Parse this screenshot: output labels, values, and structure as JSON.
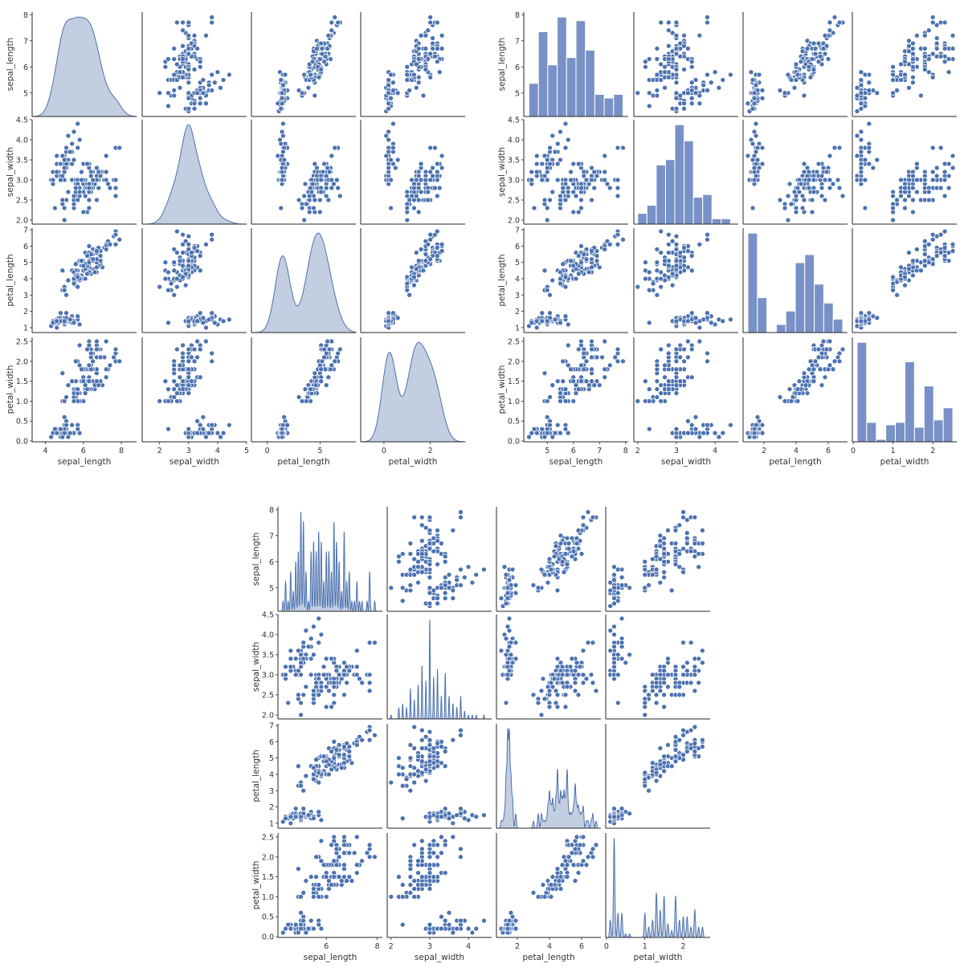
{
  "palette": {
    "marker": "#4c72b0",
    "marker_edge": "#ffffff",
    "kde_fill": "#b8c5dc",
    "hist_fill": "#7891c6",
    "hist_edge": "#ffffff"
  },
  "dataset": {
    "columns": [
      "sepal_length",
      "sepal_width",
      "petal_length",
      "petal_width"
    ],
    "rows": [
      [
        5.1,
        3.5,
        1.4,
        0.2
      ],
      [
        4.9,
        3.0,
        1.4,
        0.2
      ],
      [
        4.7,
        3.2,
        1.3,
        0.2
      ],
      [
        4.6,
        3.1,
        1.5,
        0.2
      ],
      [
        5.0,
        3.6,
        1.4,
        0.2
      ],
      [
        5.4,
        3.9,
        1.7,
        0.4
      ],
      [
        4.6,
        3.4,
        1.4,
        0.3
      ],
      [
        5.0,
        3.4,
        1.5,
        0.2
      ],
      [
        4.4,
        2.9,
        1.4,
        0.2
      ],
      [
        4.9,
        3.1,
        1.5,
        0.1
      ],
      [
        5.4,
        3.7,
        1.5,
        0.2
      ],
      [
        4.8,
        3.4,
        1.6,
        0.2
      ],
      [
        4.8,
        3.0,
        1.4,
        0.1
      ],
      [
        4.3,
        3.0,
        1.1,
        0.1
      ],
      [
        5.8,
        4.0,
        1.2,
        0.2
      ],
      [
        5.7,
        4.4,
        1.5,
        0.4
      ],
      [
        5.4,
        3.9,
        1.3,
        0.4
      ],
      [
        5.1,
        3.5,
        1.4,
        0.3
      ],
      [
        5.7,
        3.8,
        1.7,
        0.3
      ],
      [
        5.1,
        3.8,
        1.5,
        0.3
      ],
      [
        5.4,
        3.4,
        1.7,
        0.2
      ],
      [
        5.1,
        3.7,
        1.5,
        0.4
      ],
      [
        4.6,
        3.6,
        1.0,
        0.2
      ],
      [
        5.1,
        3.3,
        1.7,
        0.5
      ],
      [
        4.8,
        3.4,
        1.9,
        0.2
      ],
      [
        5.0,
        3.0,
        1.6,
        0.2
      ],
      [
        5.0,
        3.4,
        1.6,
        0.4
      ],
      [
        5.2,
        3.5,
        1.5,
        0.2
      ],
      [
        5.2,
        3.4,
        1.4,
        0.2
      ],
      [
        4.7,
        3.2,
        1.6,
        0.2
      ],
      [
        4.8,
        3.1,
        1.6,
        0.2
      ],
      [
        5.4,
        3.4,
        1.5,
        0.4
      ],
      [
        5.2,
        4.1,
        1.5,
        0.1
      ],
      [
        5.5,
        4.2,
        1.4,
        0.2
      ],
      [
        4.9,
        3.1,
        1.5,
        0.2
      ],
      [
        5.0,
        3.2,
        1.2,
        0.2
      ],
      [
        5.5,
        3.5,
        1.3,
        0.2
      ],
      [
        4.9,
        3.6,
        1.4,
        0.1
      ],
      [
        4.4,
        3.0,
        1.3,
        0.2
      ],
      [
        5.1,
        3.4,
        1.5,
        0.2
      ],
      [
        5.0,
        3.5,
        1.3,
        0.3
      ],
      [
        4.5,
        2.3,
        1.3,
        0.3
      ],
      [
        4.4,
        3.2,
        1.3,
        0.2
      ],
      [
        5.0,
        3.5,
        1.6,
        0.6
      ],
      [
        5.1,
        3.8,
        1.9,
        0.4
      ],
      [
        4.8,
        3.0,
        1.4,
        0.3
      ],
      [
        5.1,
        3.8,
        1.6,
        0.2
      ],
      [
        4.6,
        3.2,
        1.4,
        0.2
      ],
      [
        5.3,
        3.7,
        1.5,
        0.2
      ],
      [
        5.0,
        3.3,
        1.4,
        0.2
      ],
      [
        7.0,
        3.2,
        4.7,
        1.4
      ],
      [
        6.4,
        3.2,
        4.5,
        1.5
      ],
      [
        6.9,
        3.1,
        4.9,
        1.5
      ],
      [
        5.5,
        2.3,
        4.0,
        1.3
      ],
      [
        6.5,
        2.8,
        4.6,
        1.5
      ],
      [
        5.7,
        2.8,
        4.5,
        1.3
      ],
      [
        6.3,
        3.3,
        4.7,
        1.6
      ],
      [
        4.9,
        2.4,
        3.3,
        1.0
      ],
      [
        6.6,
        2.9,
        4.6,
        1.3
      ],
      [
        5.2,
        2.7,
        3.9,
        1.4
      ],
      [
        5.0,
        2.0,
        3.5,
        1.0
      ],
      [
        5.9,
        3.0,
        4.2,
        1.5
      ],
      [
        6.0,
        2.2,
        4.0,
        1.0
      ],
      [
        6.1,
        2.9,
        4.7,
        1.4
      ],
      [
        5.6,
        2.9,
        3.6,
        1.3
      ],
      [
        6.7,
        3.1,
        4.4,
        1.4
      ],
      [
        5.6,
        3.0,
        4.5,
        1.5
      ],
      [
        5.8,
        2.7,
        4.1,
        1.0
      ],
      [
        6.2,
        2.2,
        4.5,
        1.5
      ],
      [
        5.6,
        2.5,
        3.9,
        1.1
      ],
      [
        5.9,
        3.2,
        4.8,
        1.8
      ],
      [
        6.1,
        2.8,
        4.0,
        1.3
      ],
      [
        6.3,
        2.5,
        4.9,
        1.5
      ],
      [
        6.1,
        2.8,
        4.7,
        1.2
      ],
      [
        6.4,
        2.9,
        4.3,
        1.3
      ],
      [
        6.6,
        3.0,
        4.4,
        1.4
      ],
      [
        6.8,
        2.8,
        4.8,
        1.4
      ],
      [
        6.7,
        3.0,
        5.0,
        1.7
      ],
      [
        6.0,
        2.9,
        4.5,
        1.5
      ],
      [
        5.7,
        2.6,
        3.5,
        1.0
      ],
      [
        5.5,
        2.4,
        3.8,
        1.1
      ],
      [
        5.5,
        2.4,
        3.7,
        1.0
      ],
      [
        5.8,
        2.7,
        3.9,
        1.2
      ],
      [
        6.0,
        2.7,
        5.1,
        1.6
      ],
      [
        5.4,
        3.0,
        4.5,
        1.5
      ],
      [
        6.0,
        3.4,
        4.5,
        1.6
      ],
      [
        6.7,
        3.1,
        4.7,
        1.5
      ],
      [
        6.3,
        2.3,
        4.4,
        1.3
      ],
      [
        5.6,
        3.0,
        4.1,
        1.3
      ],
      [
        5.5,
        2.5,
        4.0,
        1.3
      ],
      [
        5.5,
        2.6,
        4.4,
        1.2
      ],
      [
        6.1,
        3.0,
        4.6,
        1.4
      ],
      [
        5.8,
        2.6,
        4.0,
        1.2
      ],
      [
        5.0,
        2.3,
        3.3,
        1.0
      ],
      [
        5.6,
        2.7,
        4.2,
        1.3
      ],
      [
        5.7,
        3.0,
        4.2,
        1.2
      ],
      [
        5.7,
        2.9,
        4.2,
        1.3
      ],
      [
        6.2,
        2.9,
        4.3,
        1.3
      ],
      [
        5.1,
        2.5,
        3.0,
        1.1
      ],
      [
        5.7,
        2.8,
        4.1,
        1.3
      ],
      [
        6.3,
        3.3,
        6.0,
        2.5
      ],
      [
        5.8,
        2.7,
        5.1,
        1.9
      ],
      [
        7.1,
        3.0,
        5.9,
        2.1
      ],
      [
        6.3,
        2.9,
        5.6,
        1.8
      ],
      [
        6.5,
        3.0,
        5.8,
        2.2
      ],
      [
        7.6,
        3.0,
        6.6,
        2.1
      ],
      [
        4.9,
        2.5,
        4.5,
        1.7
      ],
      [
        7.3,
        2.9,
        6.3,
        1.8
      ],
      [
        6.7,
        2.5,
        5.8,
        1.8
      ],
      [
        7.2,
        3.6,
        6.1,
        2.5
      ],
      [
        6.5,
        3.2,
        5.1,
        2.0
      ],
      [
        6.4,
        2.7,
        5.3,
        1.9
      ],
      [
        6.8,
        3.0,
        5.5,
        2.1
      ],
      [
        5.7,
        2.5,
        5.0,
        2.0
      ],
      [
        5.8,
        2.8,
        5.1,
        2.4
      ],
      [
        6.4,
        3.2,
        5.3,
        2.3
      ],
      [
        6.5,
        3.0,
        5.5,
        1.8
      ],
      [
        7.7,
        3.8,
        6.7,
        2.2
      ],
      [
        7.7,
        2.6,
        6.9,
        2.3
      ],
      [
        6.0,
        2.2,
        5.0,
        1.5
      ],
      [
        6.9,
        3.2,
        5.7,
        2.3
      ],
      [
        5.6,
        2.8,
        4.9,
        2.0
      ],
      [
        7.7,
        2.8,
        6.7,
        2.0
      ],
      [
        6.3,
        2.7,
        4.9,
        1.8
      ],
      [
        6.7,
        3.3,
        5.7,
        2.1
      ],
      [
        7.2,
        3.2,
        6.0,
        1.8
      ],
      [
        6.2,
        2.8,
        4.8,
        1.8
      ],
      [
        6.1,
        3.0,
        4.9,
        1.8
      ],
      [
        6.4,
        2.8,
        5.6,
        2.1
      ],
      [
        7.2,
        3.0,
        5.8,
        1.6
      ],
      [
        7.4,
        2.8,
        6.1,
        1.9
      ],
      [
        7.9,
        3.8,
        6.4,
        2.0
      ],
      [
        6.4,
        2.8,
        5.6,
        2.2
      ],
      [
        6.3,
        2.8,
        5.1,
        1.5
      ],
      [
        6.1,
        2.6,
        5.6,
        1.4
      ],
      [
        7.7,
        3.0,
        6.1,
        2.3
      ],
      [
        6.3,
        3.4,
        5.6,
        2.4
      ],
      [
        6.4,
        3.1,
        5.5,
        1.8
      ],
      [
        6.0,
        3.0,
        4.8,
        1.8
      ],
      [
        6.9,
        3.1,
        5.4,
        2.1
      ],
      [
        6.7,
        3.1,
        5.6,
        2.4
      ],
      [
        6.9,
        3.1,
        5.1,
        2.3
      ],
      [
        5.8,
        2.7,
        5.1,
        1.9
      ],
      [
        6.8,
        3.2,
        5.9,
        2.3
      ],
      [
        6.7,
        3.3,
        5.7,
        2.5
      ],
      [
        6.7,
        3.0,
        5.2,
        2.3
      ],
      [
        6.3,
        2.5,
        5.0,
        1.9
      ],
      [
        6.5,
        3.0,
        5.2,
        2.0
      ],
      [
        6.2,
        3.4,
        5.4,
        2.3
      ],
      [
        5.9,
        3.0,
        5.1,
        1.8
      ]
    ]
  },
  "chart_data": [
    {
      "type": "scatter",
      "subtype": "pairplot",
      "diagonal": "kde",
      "variables": [
        "sepal_length",
        "sepal_width",
        "petal_length",
        "petal_width"
      ],
      "xlabels": [
        "sepal_length",
        "sepal_width",
        "petal_length",
        "petal_width"
      ],
      "ylabels": [
        "sepal_length",
        "sepal_width",
        "petal_length",
        "petal_width"
      ],
      "xticks": [
        [
          4,
          6,
          8
        ],
        [
          2,
          3,
          4,
          5
        ],
        [
          0,
          5
        ],
        [
          0,
          2
        ]
      ],
      "yticks": [
        [
          5,
          6,
          7,
          8
        ],
        [
          "2.0",
          "2.5",
          "3.0",
          "3.5",
          "4.0",
          "4.5"
        ],
        [
          1,
          2,
          3,
          4,
          5,
          6,
          7
        ],
        [
          "0.0",
          "0.5",
          "1.0",
          "1.5",
          "2.0",
          "2.5"
        ]
      ],
      "xlim": [
        [
          3.3,
          8.8
        ],
        [
          1.4,
          5.0
        ],
        [
          -1.5,
          8.4
        ],
        [
          -1.0,
          3.5
        ]
      ],
      "ylim": [
        [
          4.1,
          8.1
        ],
        [
          1.9,
          4.5
        ],
        [
          0.7,
          7.1
        ],
        [
          -0.02,
          2.6
        ]
      ],
      "grid": false,
      "legend": "none"
    },
    {
      "type": "scatter",
      "subtype": "pairplot",
      "diagonal": "hist",
      "variables": [
        "sepal_length",
        "sepal_width",
        "petal_length",
        "petal_width"
      ],
      "xlabels": [
        "sepal_length",
        "sepal_width",
        "petal_length",
        "petal_width"
      ],
      "ylabels": [
        "sepal_length",
        "sepal_width",
        "petal_length",
        "petal_width"
      ],
      "xticks": [
        [
          5,
          6,
          7,
          8
        ],
        [
          2,
          3,
          4
        ],
        [
          2,
          4,
          6
        ],
        [
          0,
          1,
          2
        ]
      ],
      "yticks": [
        [
          5,
          6,
          7,
          8
        ],
        [
          "2.0",
          "2.5",
          "3.0",
          "3.5",
          "4.0",
          "4.5"
        ],
        [
          1,
          2,
          3,
          4,
          5,
          6,
          7
        ],
        [
          "0.0",
          "0.5",
          "1.0",
          "1.5",
          "2.0",
          "2.5"
        ]
      ],
      "xlim": [
        [
          4.1,
          8.1
        ],
        [
          1.9,
          4.6
        ],
        [
          0.7,
          7.2
        ],
        [
          -0.02,
          2.6
        ]
      ],
      "ylim": [
        [
          4.1,
          8.1
        ],
        [
          1.9,
          4.5
        ],
        [
          0.7,
          7.1
        ],
        [
          -0.02,
          2.6
        ]
      ],
      "diag_hist": [
        {
          "edges": [
            4.3,
            4.66,
            5.02,
            5.38,
            5.74,
            6.1,
            6.46,
            6.82,
            7.18,
            7.54,
            7.9
          ],
          "counts": [
            9,
            23,
            14,
            27,
            16,
            26,
            18,
            6,
            5,
            6
          ]
        },
        {
          "edges": [
            2.0,
            2.24,
            2.48,
            2.72,
            2.96,
            3.2,
            3.44,
            3.68,
            3.92,
            4.16,
            4.4
          ],
          "counts": [
            4,
            7,
            22,
            24,
            37,
            31,
            10,
            11,
            2,
            2
          ]
        },
        {
          "edges": [
            1.0,
            1.59,
            2.18,
            2.77,
            3.36,
            3.95,
            4.54,
            5.13,
            5.72,
            6.31,
            6.9
          ],
          "counts": [
            37,
            13,
            0,
            3,
            8,
            26,
            29,
            18,
            11,
            5
          ]
        },
        {
          "edges": [
            0.1,
            0.34,
            0.58,
            0.82,
            1.06,
            1.3,
            1.54,
            1.78,
            2.02,
            2.26,
            2.5
          ],
          "counts": [
            41,
            8,
            1,
            7,
            8,
            33,
            6,
            23,
            9,
            14
          ]
        }
      ],
      "grid": false,
      "legend": "none"
    },
    {
      "type": "scatter",
      "subtype": "pairplot",
      "diagonal": "kde-narrow",
      "variables": [
        "sepal_length",
        "sepal_width",
        "petal_length",
        "petal_width"
      ],
      "xlabels": [
        "sepal_length",
        "sepal_width",
        "petal_length",
        "petal_width"
      ],
      "ylabels": [
        "sepal_length",
        "sepal_width",
        "petal_length",
        "petal_width"
      ],
      "xticks": [
        [
          6,
          8
        ],
        [
          2,
          3,
          4
        ],
        [
          2,
          4,
          6
        ],
        [
          0,
          1,
          2
        ]
      ],
      "yticks": [
        [
          5,
          6,
          7,
          8
        ],
        [
          "2.0",
          "2.5",
          "3.0",
          "3.5",
          "4.0",
          "4.5"
        ],
        [
          1,
          2,
          3,
          4,
          5,
          6,
          7
        ],
        [
          "0.0",
          "0.5",
          "1.0",
          "1.5",
          "2.0",
          "2.5"
        ]
      ],
      "xlim": [
        [
          4.1,
          8.2
        ],
        [
          1.9,
          4.6
        ],
        [
          0.7,
          7.2
        ],
        [
          -0.02,
          2.7
        ]
      ],
      "ylim": [
        [
          4.1,
          8.1
        ],
        [
          1.9,
          4.5
        ],
        [
          0.7,
          7.1
        ],
        [
          -0.02,
          2.6
        ]
      ],
      "grid": false,
      "legend": "none"
    }
  ]
}
